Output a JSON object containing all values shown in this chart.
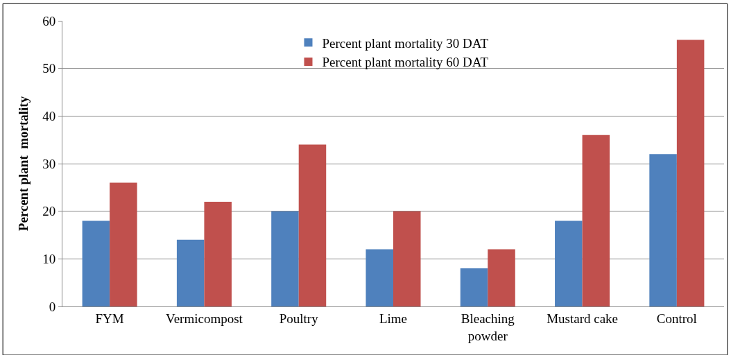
{
  "chart_data": {
    "type": "bar",
    "ylabel": "Percent plant  mortality",
    "categories": [
      "FYM",
      "Vermicompost",
      "Poultry",
      "Lime",
      "Bleaching powder",
      "Mustard cake",
      "Control"
    ],
    "series": [
      {
        "name": "Percent plant mortality 30 DAT",
        "color": "#4f81bd",
        "values": [
          18,
          14,
          20,
          12,
          8,
          18,
          32
        ]
      },
      {
        "name": "Percent plant mortality 60 DAT",
        "color": "#c0504d",
        "values": [
          26,
          22,
          34,
          20,
          12,
          36,
          56
        ]
      }
    ],
    "ylim": [
      0,
      60
    ],
    "yticks": [
      0,
      10,
      20,
      30,
      40,
      50,
      60
    ],
    "grid": "y",
    "legend": "top"
  }
}
